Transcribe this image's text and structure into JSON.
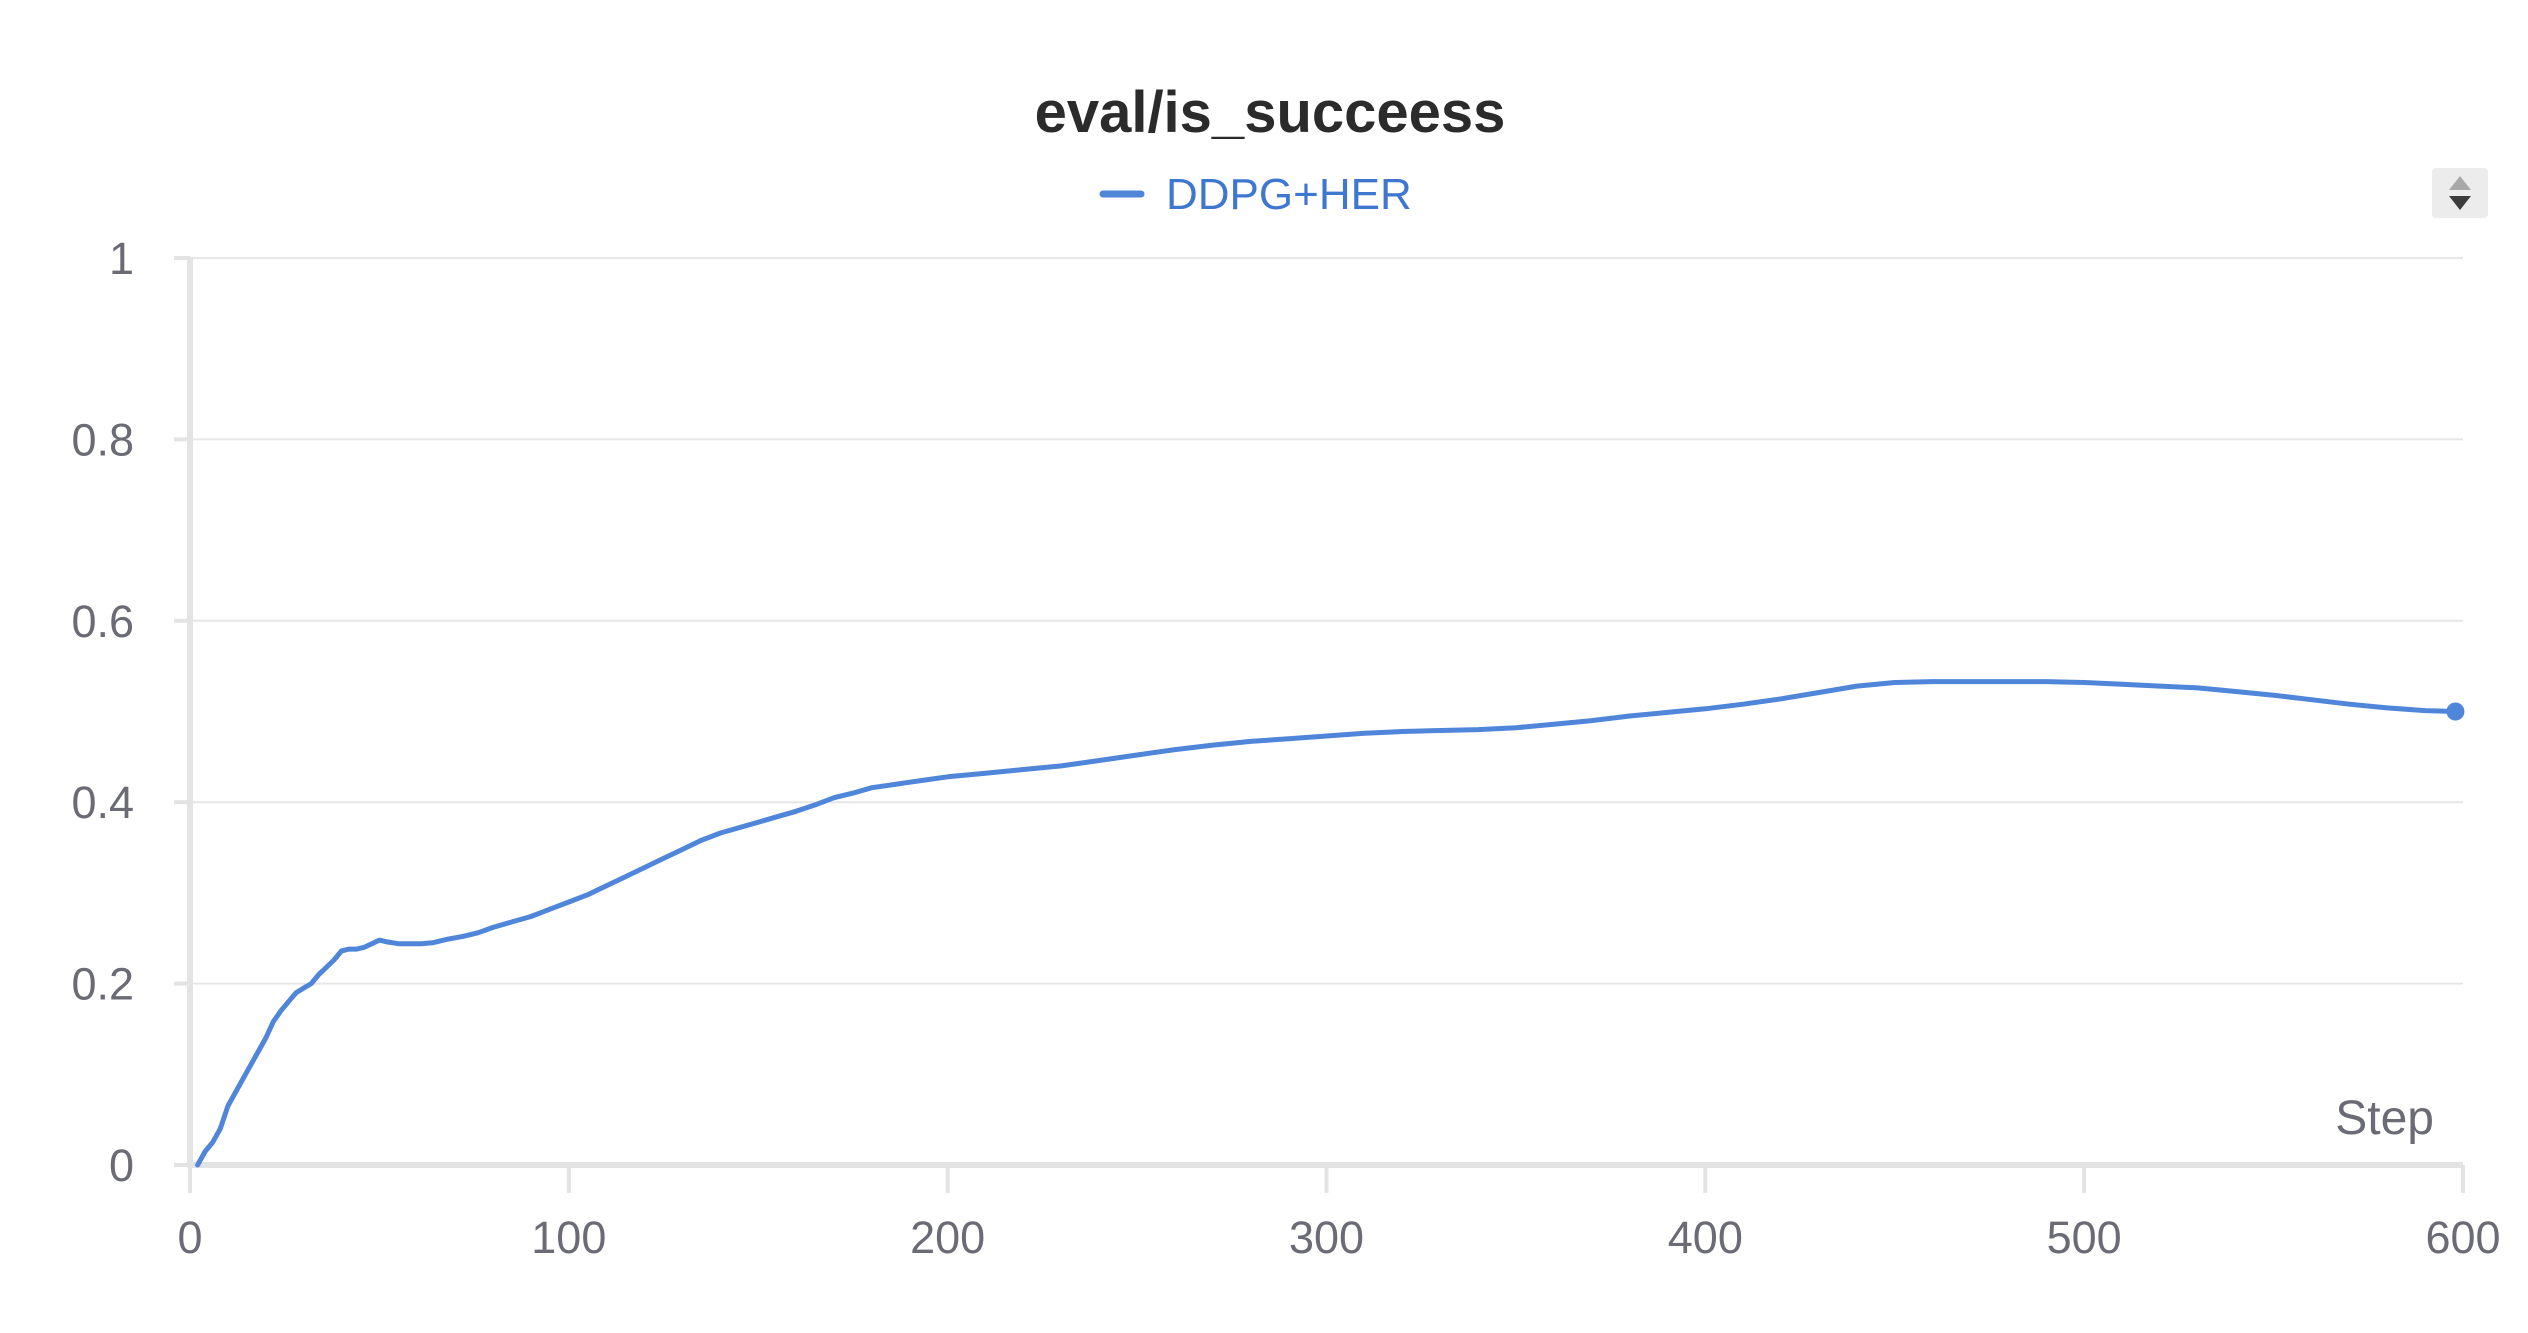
{
  "chart_data": {
    "type": "line",
    "title": "eval/is_succeess",
    "xlabel": "Step",
    "ylabel": "",
    "xlim": [
      0,
      600
    ],
    "ylim": [
      0,
      1
    ],
    "x_ticks": [
      "0",
      "100",
      "200",
      "300",
      "400",
      "500",
      "600"
    ],
    "y_ticks": [
      "0",
      "0.2",
      "0.4",
      "0.6",
      "0.8",
      "1"
    ],
    "grid": true,
    "legend_position": "top-center",
    "series": [
      {
        "name": "DDPG+HER",
        "color": "#4f86d9",
        "points": [
          [
            2,
            0.0
          ],
          [
            4,
            0.015
          ],
          [
            6,
            0.025
          ],
          [
            8,
            0.04
          ],
          [
            10,
            0.065
          ],
          [
            12,
            0.08
          ],
          [
            14,
            0.095
          ],
          [
            16,
            0.11
          ],
          [
            18,
            0.125
          ],
          [
            20,
            0.14
          ],
          [
            22,
            0.158
          ],
          [
            24,
            0.17
          ],
          [
            26,
            0.18
          ],
          [
            28,
            0.19
          ],
          [
            30,
            0.195
          ],
          [
            32,
            0.2
          ],
          [
            34,
            0.21
          ],
          [
            36,
            0.218
          ],
          [
            38,
            0.226
          ],
          [
            40,
            0.236
          ],
          [
            42,
            0.238
          ],
          [
            44,
            0.238
          ],
          [
            46,
            0.24
          ],
          [
            48,
            0.244
          ],
          [
            50,
            0.248
          ],
          [
            52,
            0.246
          ],
          [
            55,
            0.244
          ],
          [
            58,
            0.244
          ],
          [
            61,
            0.244
          ],
          [
            64,
            0.245
          ],
          [
            68,
            0.249
          ],
          [
            72,
            0.252
          ],
          [
            76,
            0.256
          ],
          [
            80,
            0.262
          ],
          [
            85,
            0.268
          ],
          [
            90,
            0.274
          ],
          [
            95,
            0.282
          ],
          [
            100,
            0.29
          ],
          [
            105,
            0.298
          ],
          [
            110,
            0.308
          ],
          [
            115,
            0.318
          ],
          [
            120,
            0.328
          ],
          [
            125,
            0.338
          ],
          [
            130,
            0.348
          ],
          [
            135,
            0.358
          ],
          [
            140,
            0.366
          ],
          [
            145,
            0.372
          ],
          [
            150,
            0.378
          ],
          [
            155,
            0.384
          ],
          [
            160,
            0.39
          ],
          [
            165,
            0.397
          ],
          [
            170,
            0.405
          ],
          [
            175,
            0.41
          ],
          [
            180,
            0.416
          ],
          [
            185,
            0.419
          ],
          [
            190,
            0.422
          ],
          [
            195,
            0.425
          ],
          [
            200,
            0.428
          ],
          [
            210,
            0.432
          ],
          [
            220,
            0.436
          ],
          [
            230,
            0.44
          ],
          [
            240,
            0.446
          ],
          [
            250,
            0.452
          ],
          [
            260,
            0.458
          ],
          [
            270,
            0.463
          ],
          [
            280,
            0.467
          ],
          [
            290,
            0.47
          ],
          [
            300,
            0.473
          ],
          [
            310,
            0.476
          ],
          [
            320,
            0.478
          ],
          [
            330,
            0.479
          ],
          [
            340,
            0.48
          ],
          [
            350,
            0.482
          ],
          [
            360,
            0.486
          ],
          [
            370,
            0.49
          ],
          [
            380,
            0.495
          ],
          [
            390,
            0.499
          ],
          [
            400,
            0.503
          ],
          [
            410,
            0.508
          ],
          [
            420,
            0.514
          ],
          [
            430,
            0.521
          ],
          [
            440,
            0.528
          ],
          [
            450,
            0.532
          ],
          [
            460,
            0.533
          ],
          [
            470,
            0.533
          ],
          [
            480,
            0.533
          ],
          [
            490,
            0.533
          ],
          [
            500,
            0.532
          ],
          [
            510,
            0.53
          ],
          [
            520,
            0.528
          ],
          [
            530,
            0.526
          ],
          [
            540,
            0.522
          ],
          [
            550,
            0.518
          ],
          [
            560,
            0.513
          ],
          [
            570,
            0.508
          ],
          [
            580,
            0.504
          ],
          [
            590,
            0.501
          ],
          [
            598,
            0.5
          ]
        ]
      }
    ]
  },
  "controls": {
    "sort_icon": "sort-arrows-icon"
  }
}
